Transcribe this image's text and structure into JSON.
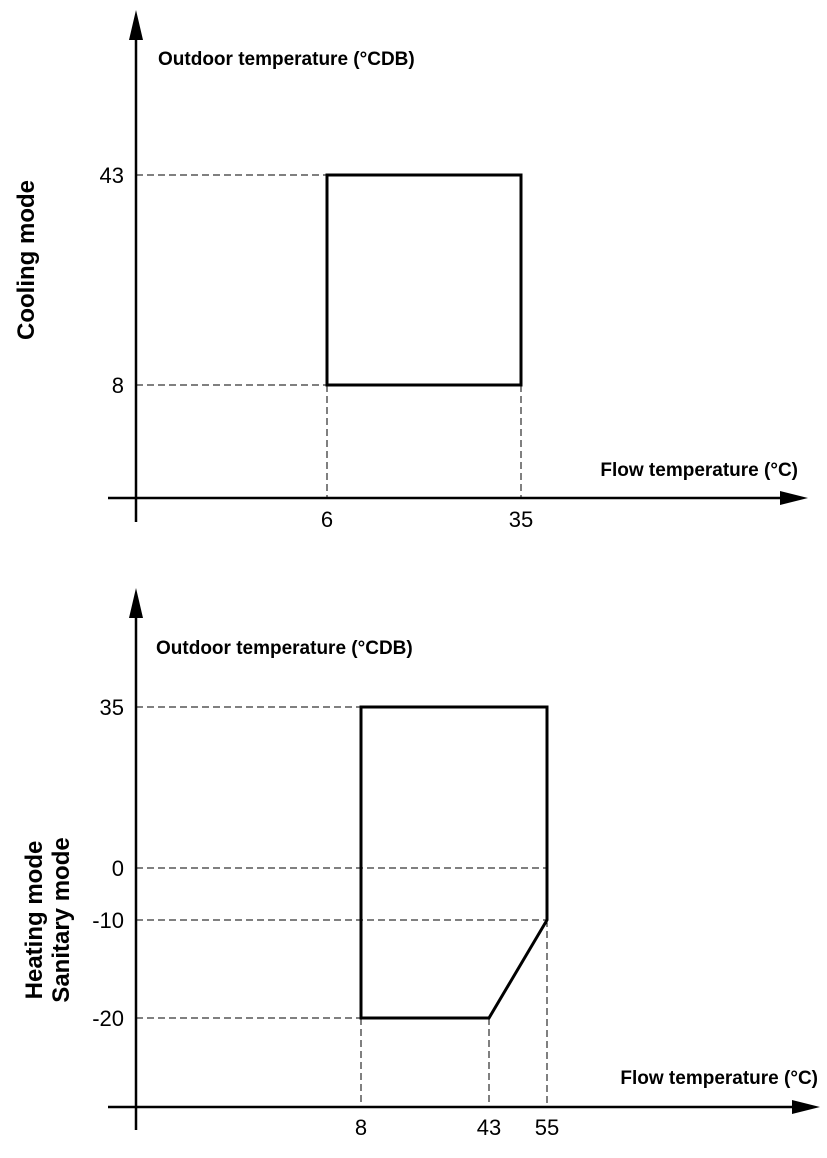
{
  "cooling": {
    "mode_label": "Cooling mode",
    "y_axis_label": "Outdoor temperature (°CDB)",
    "x_axis_label": "Flow temperature (°C)",
    "y_ticks": [
      "43",
      "8"
    ],
    "x_ticks": [
      "6",
      "35"
    ],
    "envelope": [
      [
        6,
        8
      ],
      [
        6,
        43
      ],
      [
        35,
        43
      ],
      [
        35,
        8
      ]
    ]
  },
  "heating": {
    "mode_label_line1": "Heating mode",
    "mode_label_line2": "Sanitary mode",
    "y_axis_label": "Outdoor temperature (°CDB)",
    "x_axis_label": "Flow temperature (°C)",
    "y_ticks": [
      "35",
      "0",
      "-10",
      "-20"
    ],
    "x_ticks": [
      "8",
      "43",
      "55"
    ],
    "envelope": [
      [
        8,
        -20
      ],
      [
        8,
        35
      ],
      [
        55,
        35
      ],
      [
        55,
        -10
      ],
      [
        43,
        -20
      ]
    ]
  }
}
